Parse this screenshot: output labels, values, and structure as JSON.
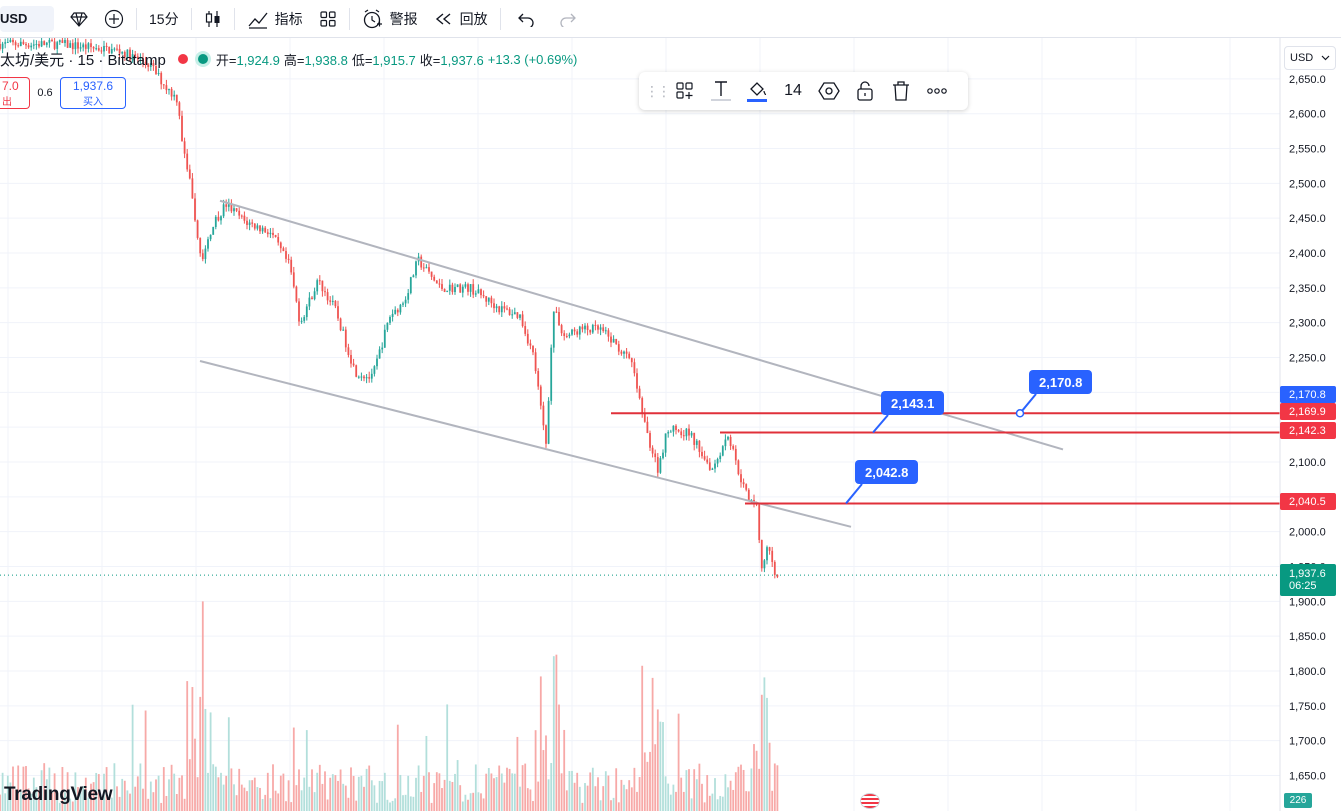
{
  "toolbar": {
    "symbol": "USD",
    "interval": "15分",
    "indicators_label": "指标",
    "alert_label": "警报",
    "replay_label": "回放"
  },
  "legend": {
    "title": "太坊/美元 · 15 · Bitstamp",
    "open_label": "开=",
    "open": "1,924.9",
    "high_label": "高=",
    "high": "1,938.8",
    "low_label": "低=",
    "low": "1,915.7",
    "close_label": "收=",
    "close": "1,937.6",
    "change": "+13.3 (+0.69%)"
  },
  "trade": {
    "sell_price": "7.0",
    "sell_label": "出",
    "spread": "0.6",
    "buy_price": "1,937.6",
    "buy_label": "买入"
  },
  "draw_toolbar": {
    "font_size": "14"
  },
  "currency": "USD",
  "price_axis": {
    "labels": [
      "2,650.0",
      "2,600.0",
      "2,550.0",
      "2,500.0",
      "2,450.0",
      "2,400.0",
      "2,350.0",
      "2,300.0",
      "2,250.0",
      "2,100.0",
      "2,000.0",
      "1,950.0",
      "1,900.0",
      "1,850.0",
      "1,800.0",
      "1,750.0",
      "1,700.0",
      "1,650.0"
    ]
  },
  "price_tags": {
    "tag1": "2,170.8",
    "tag2": "2,169.9",
    "tag3": "2,142.3",
    "tag4": "2,040.5",
    "current": "1,937.6",
    "countdown": "06:25"
  },
  "callouts": {
    "c1": "2,170.8",
    "c2": "2,143.1",
    "c3": "2,042.8"
  },
  "volume_value": "226",
  "brand": "TradingView",
  "colors": {
    "up": "#26a69a",
    "down": "#ef5350",
    "hline": "#e0303a",
    "channel": "#b2b5be",
    "accent": "#2962ff"
  }
}
